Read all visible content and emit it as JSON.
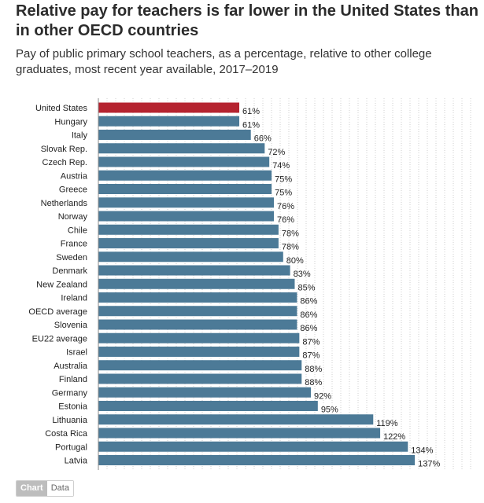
{
  "title": "Relative pay for teachers is far lower in the United States than in other OECD countries",
  "subtitle": "Pay of public primary school teachers, as a percentage, relative to other college graduates, most recent year available, 2017–2019",
  "toggle": {
    "chart_label": "Chart",
    "data_label": "Data"
  },
  "colors": {
    "highlight": "#b5232f",
    "bar": "#4c7a97",
    "grid": "#cfcfcf"
  },
  "chart_data": {
    "type": "bar",
    "orientation": "horizontal",
    "highlight_category": "United States",
    "value_suffix": "%",
    "categories": [
      "United States",
      "Hungary",
      "Italy",
      "Slovak Rep.",
      "Czech Rep.",
      "Austria",
      "Greece",
      "Netherlands",
      "Norway",
      "Chile",
      "France",
      "Sweden",
      "Denmark",
      "New Zealand",
      "Ireland",
      "OECD average",
      "Slovenia",
      "EU22 average",
      "Israel",
      "Australia",
      "Finland",
      "Germany",
      "Estonia",
      "Lithuania",
      "Costa Rica",
      "Portugal",
      "Latvia"
    ],
    "values": [
      61,
      61,
      66,
      72,
      74,
      75,
      75,
      76,
      76,
      78,
      78,
      80,
      83,
      85,
      86,
      86,
      86,
      87,
      87,
      88,
      88,
      92,
      95,
      119,
      122,
      134,
      137
    ],
    "xlim": [
      0,
      137
    ],
    "grid": true
  }
}
